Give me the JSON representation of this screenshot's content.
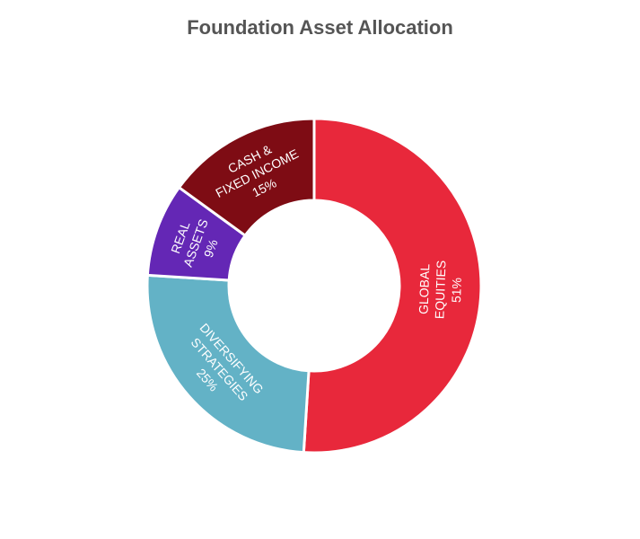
{
  "chart_data": {
    "type": "pie",
    "title": "Foundation Asset Allocation",
    "donut": true,
    "slices": [
      {
        "name": "GLOBAL EQUITIES",
        "value": 51,
        "label_lines": [
          "GLOBAL",
          "EQUITIES",
          "51%"
        ],
        "color": "#e8283b"
      },
      {
        "name": "DIVERSIFYING STRATEGIES",
        "value": 25,
        "label_lines": [
          "DIVERSIFYING",
          "STRATEGIES",
          "25%"
        ],
        "color": "#63b2c6"
      },
      {
        "name": "REAL ASSETS",
        "value": 9,
        "label_lines": [
          "REAL",
          "ASSETS",
          "9%"
        ],
        "color": "#6427b5"
      },
      {
        "name": "CASH & FIXED INCOME",
        "value": 15,
        "label_lines": [
          "CASH &",
          "FIXED INCOME",
          "15%"
        ],
        "color": "#7e0c14"
      }
    ]
  }
}
